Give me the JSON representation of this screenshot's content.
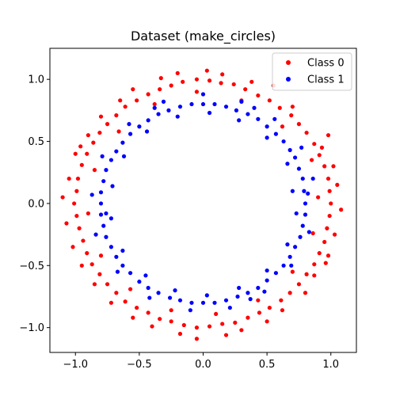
{
  "chart_data": {
    "type": "scatter",
    "title": "Dataset (make_circles)",
    "xlabel": "",
    "ylabel": "",
    "xlim": [
      -1.2,
      1.2
    ],
    "ylim": [
      -1.2,
      1.25
    ],
    "xticks": [
      -1.0,
      -0.5,
      0.0,
      0.5,
      1.0
    ],
    "yticks": [
      -1.0,
      -0.5,
      0.0,
      0.5,
      1.0
    ],
    "xtick_labels": [
      "−1.0",
      "−0.5",
      "0.0",
      "0.5",
      "1.0"
    ],
    "ytick_labels": [
      "−1.0",
      "−0.5",
      "0.0",
      "0.5",
      "1.0"
    ],
    "grid": false,
    "legend_position": "top-right",
    "series": [
      {
        "name": "Class 0",
        "color": "#ff0000",
        "marker": "circle",
        "points": [
          [
            1.0,
            0.0
          ],
          [
            0.99,
            0.1
          ],
          [
            0.98,
            0.2
          ],
          [
            0.95,
            0.3
          ],
          [
            0.91,
            0.39
          ],
          [
            0.87,
            0.48
          ],
          [
            0.81,
            0.57
          ],
          [
            0.75,
            0.64
          ],
          [
            0.69,
            0.71
          ],
          [
            0.6,
            0.77
          ],
          [
            0.52,
            0.83
          ],
          [
            0.43,
            0.87
          ],
          [
            0.33,
            0.92
          ],
          [
            0.24,
            0.96
          ],
          [
            0.14,
            0.97
          ],
          [
            0.05,
            0.99
          ],
          [
            -0.05,
            1.0
          ],
          [
            -0.16,
            0.98
          ],
          [
            -0.25,
            0.95
          ],
          [
            -0.34,
            0.92
          ],
          [
            -0.43,
            0.88
          ],
          [
            -0.52,
            0.83
          ],
          [
            -0.61,
            0.78
          ],
          [
            -0.68,
            0.71
          ],
          [
            -0.75,
            0.64
          ],
          [
            -0.81,
            0.57
          ],
          [
            -0.86,
            0.49
          ],
          [
            -0.91,
            0.4
          ],
          [
            -0.95,
            0.31
          ],
          [
            -0.98,
            0.2
          ],
          [
            -0.99,
            0.1
          ],
          [
            -1.01,
            0.0
          ],
          [
            -0.99,
            -0.1
          ],
          [
            -0.97,
            -0.2
          ],
          [
            -0.94,
            -0.3
          ],
          [
            -0.91,
            -0.4
          ],
          [
            -0.87,
            -0.49
          ],
          [
            -0.81,
            -0.57
          ],
          [
            -0.75,
            -0.65
          ],
          [
            -0.68,
            -0.72
          ],
          [
            -0.61,
            -0.79
          ],
          [
            -0.52,
            -0.84
          ],
          [
            -0.43,
            -0.88
          ],
          [
            -0.34,
            -0.93
          ],
          [
            -0.25,
            -0.95
          ],
          [
            -0.15,
            -0.98
          ],
          [
            -0.05,
            -1.0
          ],
          [
            0.05,
            -0.99
          ],
          [
            0.15,
            -0.97
          ],
          [
            0.25,
            -0.96
          ],
          [
            0.35,
            -0.92
          ],
          [
            0.44,
            -0.88
          ],
          [
            0.52,
            -0.84
          ],
          [
            0.61,
            -0.78
          ],
          [
            0.68,
            -0.72
          ],
          [
            0.75,
            -0.65
          ],
          [
            0.81,
            -0.57
          ],
          [
            0.87,
            -0.49
          ],
          [
            0.91,
            -0.4
          ],
          [
            0.95,
            -0.31
          ],
          [
            0.97,
            -0.2
          ],
          [
            0.99,
            -0.1
          ],
          [
            1.05,
            0.15
          ],
          [
            0.93,
            0.45
          ],
          [
            0.7,
            0.78
          ],
          [
            0.38,
            0.98
          ],
          [
            0.03,
            1.07
          ],
          [
            -0.33,
            1.01
          ],
          [
            -0.65,
            0.83
          ],
          [
            -0.9,
            0.55
          ],
          [
            -1.05,
            0.2
          ],
          [
            -1.07,
            -0.16
          ],
          [
            -0.95,
            -0.5
          ],
          [
            -0.72,
            -0.8
          ],
          [
            -0.4,
            -0.99
          ],
          [
            -0.05,
            -1.09
          ],
          [
            0.3,
            -1.02
          ],
          [
            0.62,
            -0.86
          ],
          [
            0.87,
            -0.58
          ],
          [
            1.03,
            -0.25
          ],
          [
            0.9,
            0.05
          ],
          [
            0.85,
            0.35
          ],
          [
            0.62,
            0.62
          ],
          [
            0.3,
            0.83
          ],
          [
            -0.05,
            0.9
          ],
          [
            -0.38,
            0.8
          ],
          [
            -0.66,
            0.58
          ],
          [
            -0.85,
            0.27
          ],
          [
            -0.9,
            -0.08
          ],
          [
            -0.8,
            -0.42
          ],
          [
            -0.57,
            -0.69
          ],
          [
            -0.25,
            -0.86
          ],
          [
            0.1,
            -0.89
          ],
          [
            0.43,
            -0.78
          ],
          [
            0.7,
            -0.55
          ],
          [
            0.86,
            -0.24
          ],
          [
            1.08,
            -0.05
          ],
          [
            0.98,
            0.55
          ],
          [
            0.55,
            0.95
          ],
          [
            0.15,
            1.04
          ],
          [
            -0.2,
            1.05
          ],
          [
            -0.55,
            0.92
          ],
          [
            -0.8,
            0.7
          ],
          [
            -1.0,
            0.4
          ],
          [
            -1.1,
            0.05
          ],
          [
            -1.02,
            -0.35
          ],
          [
            -0.85,
            -0.65
          ],
          [
            -0.55,
            -0.92
          ],
          [
            -0.18,
            -1.05
          ],
          [
            0.18,
            -1.06
          ],
          [
            0.5,
            -0.95
          ],
          [
            0.8,
            -0.72
          ],
          [
            0.98,
            -0.42
          ],
          [
            1.02,
            0.3
          ],
          [
            -0.96,
            0.46
          ],
          [
            0.96,
            -0.48
          ]
        ]
      },
      {
        "name": "Class 1",
        "color": "#0000ff",
        "marker": "circle",
        "points": [
          [
            0.8,
            0.0
          ],
          [
            0.79,
            0.1
          ],
          [
            0.78,
            0.2
          ],
          [
            0.75,
            0.28
          ],
          [
            0.72,
            0.37
          ],
          [
            0.68,
            0.43
          ],
          [
            0.63,
            0.5
          ],
          [
            0.57,
            0.56
          ],
          [
            0.5,
            0.62
          ],
          [
            0.43,
            0.68
          ],
          [
            0.35,
            0.72
          ],
          [
            0.26,
            0.75
          ],
          [
            0.18,
            0.78
          ],
          [
            0.09,
            0.8
          ],
          [
            0.0,
            0.8
          ],
          [
            -0.09,
            0.8
          ],
          [
            -0.18,
            0.78
          ],
          [
            -0.27,
            0.75
          ],
          [
            -0.35,
            0.72
          ],
          [
            -0.43,
            0.67
          ],
          [
            -0.5,
            0.62
          ],
          [
            -0.57,
            0.56
          ],
          [
            -0.63,
            0.49
          ],
          [
            -0.68,
            0.42
          ],
          [
            -0.72,
            0.35
          ],
          [
            -0.76,
            0.27
          ],
          [
            -0.78,
            0.18
          ],
          [
            -0.8,
            0.09
          ],
          [
            -0.8,
            0.0
          ],
          [
            -0.8,
            -0.09
          ],
          [
            -0.78,
            -0.18
          ],
          [
            -0.76,
            -0.27
          ],
          [
            -0.72,
            -0.35
          ],
          [
            -0.68,
            -0.43
          ],
          [
            -0.63,
            -0.5
          ],
          [
            -0.57,
            -0.56
          ],
          [
            -0.5,
            -0.63
          ],
          [
            -0.43,
            -0.68
          ],
          [
            -0.35,
            -0.72
          ],
          [
            -0.26,
            -0.76
          ],
          [
            -0.18,
            -0.78
          ],
          [
            -0.09,
            -0.8
          ],
          [
            0.0,
            -0.8
          ],
          [
            0.09,
            -0.8
          ],
          [
            0.18,
            -0.78
          ],
          [
            0.27,
            -0.75
          ],
          [
            0.35,
            -0.72
          ],
          [
            0.43,
            -0.68
          ],
          [
            0.5,
            -0.62
          ],
          [
            0.57,
            -0.56
          ],
          [
            0.63,
            -0.5
          ],
          [
            0.68,
            -0.43
          ],
          [
            0.72,
            -0.35
          ],
          [
            0.76,
            -0.27
          ],
          [
            0.78,
            -0.18
          ],
          [
            0.8,
            -0.09
          ],
          [
            0.7,
            0.1
          ],
          [
            0.66,
            0.32
          ],
          [
            0.5,
            0.53
          ],
          [
            0.28,
            0.67
          ],
          [
            0.05,
            0.73
          ],
          [
            -0.2,
            0.7
          ],
          [
            -0.44,
            0.58
          ],
          [
            -0.62,
            0.38
          ],
          [
            -0.71,
            0.14
          ],
          [
            -0.72,
            -0.12
          ],
          [
            -0.63,
            -0.38
          ],
          [
            -0.45,
            -0.58
          ],
          [
            -0.22,
            -0.7
          ],
          [
            0.03,
            -0.74
          ],
          [
            0.28,
            -0.68
          ],
          [
            0.5,
            -0.54
          ],
          [
            0.66,
            -0.33
          ],
          [
            0.73,
            -0.08
          ],
          [
            0.86,
            0.2
          ],
          [
            0.77,
            0.45
          ],
          [
            0.56,
            0.68
          ],
          [
            0.3,
            0.82
          ],
          [
            0.0,
            0.88
          ],
          [
            -0.31,
            0.82
          ],
          [
            -0.58,
            0.64
          ],
          [
            -0.79,
            0.38
          ],
          [
            -0.87,
            0.07
          ],
          [
            -0.84,
            -0.25
          ],
          [
            -0.67,
            -0.55
          ],
          [
            -0.42,
            -0.76
          ],
          [
            -0.1,
            -0.86
          ],
          [
            0.21,
            -0.84
          ],
          [
            0.48,
            -0.71
          ],
          [
            0.69,
            -0.5
          ],
          [
            0.83,
            -0.23
          ],
          [
            0.82,
            0.08
          ],
          [
            0.4,
            0.77
          ],
          [
            -0.38,
            0.77
          ],
          [
            -0.76,
            -0.08
          ],
          [
            0.37,
            -0.77
          ]
        ]
      }
    ]
  }
}
